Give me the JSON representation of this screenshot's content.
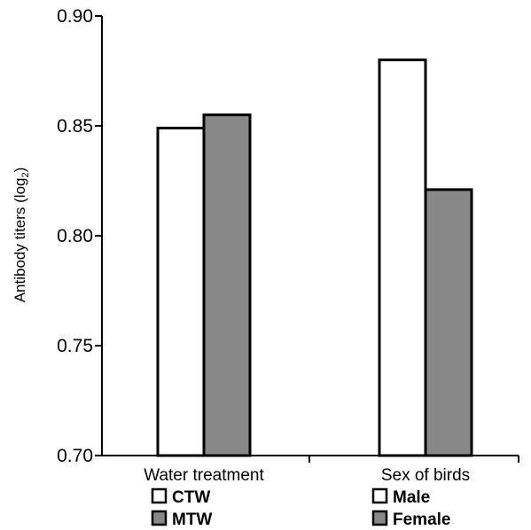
{
  "chart_data": {
    "type": "bar",
    "title": "",
    "xlabel": "",
    "ylabel": "Antibody titers (log",
    "ylabel_subscript": "2",
    "ylabel_close": ")",
    "ylim": [
      0.7,
      0.9
    ],
    "yticks": [
      "0.70",
      "0.75",
      "0.80",
      "0.85",
      "0.90"
    ],
    "grid": false,
    "groups": [
      {
        "label": "Water treatment",
        "bars": [
          {
            "name": "CTW",
            "value": 0.849,
            "color": "#ffffff"
          },
          {
            "name": "MTW",
            "value": 0.855,
            "color": "#888888"
          }
        ]
      },
      {
        "label": "Sex of birds",
        "bars": [
          {
            "name": "Male",
            "value": 0.88,
            "color": "#ffffff"
          },
          {
            "name": "Female",
            "value": 0.821,
            "color": "#888888"
          }
        ]
      }
    ],
    "legend_placement": "below-each-group"
  }
}
